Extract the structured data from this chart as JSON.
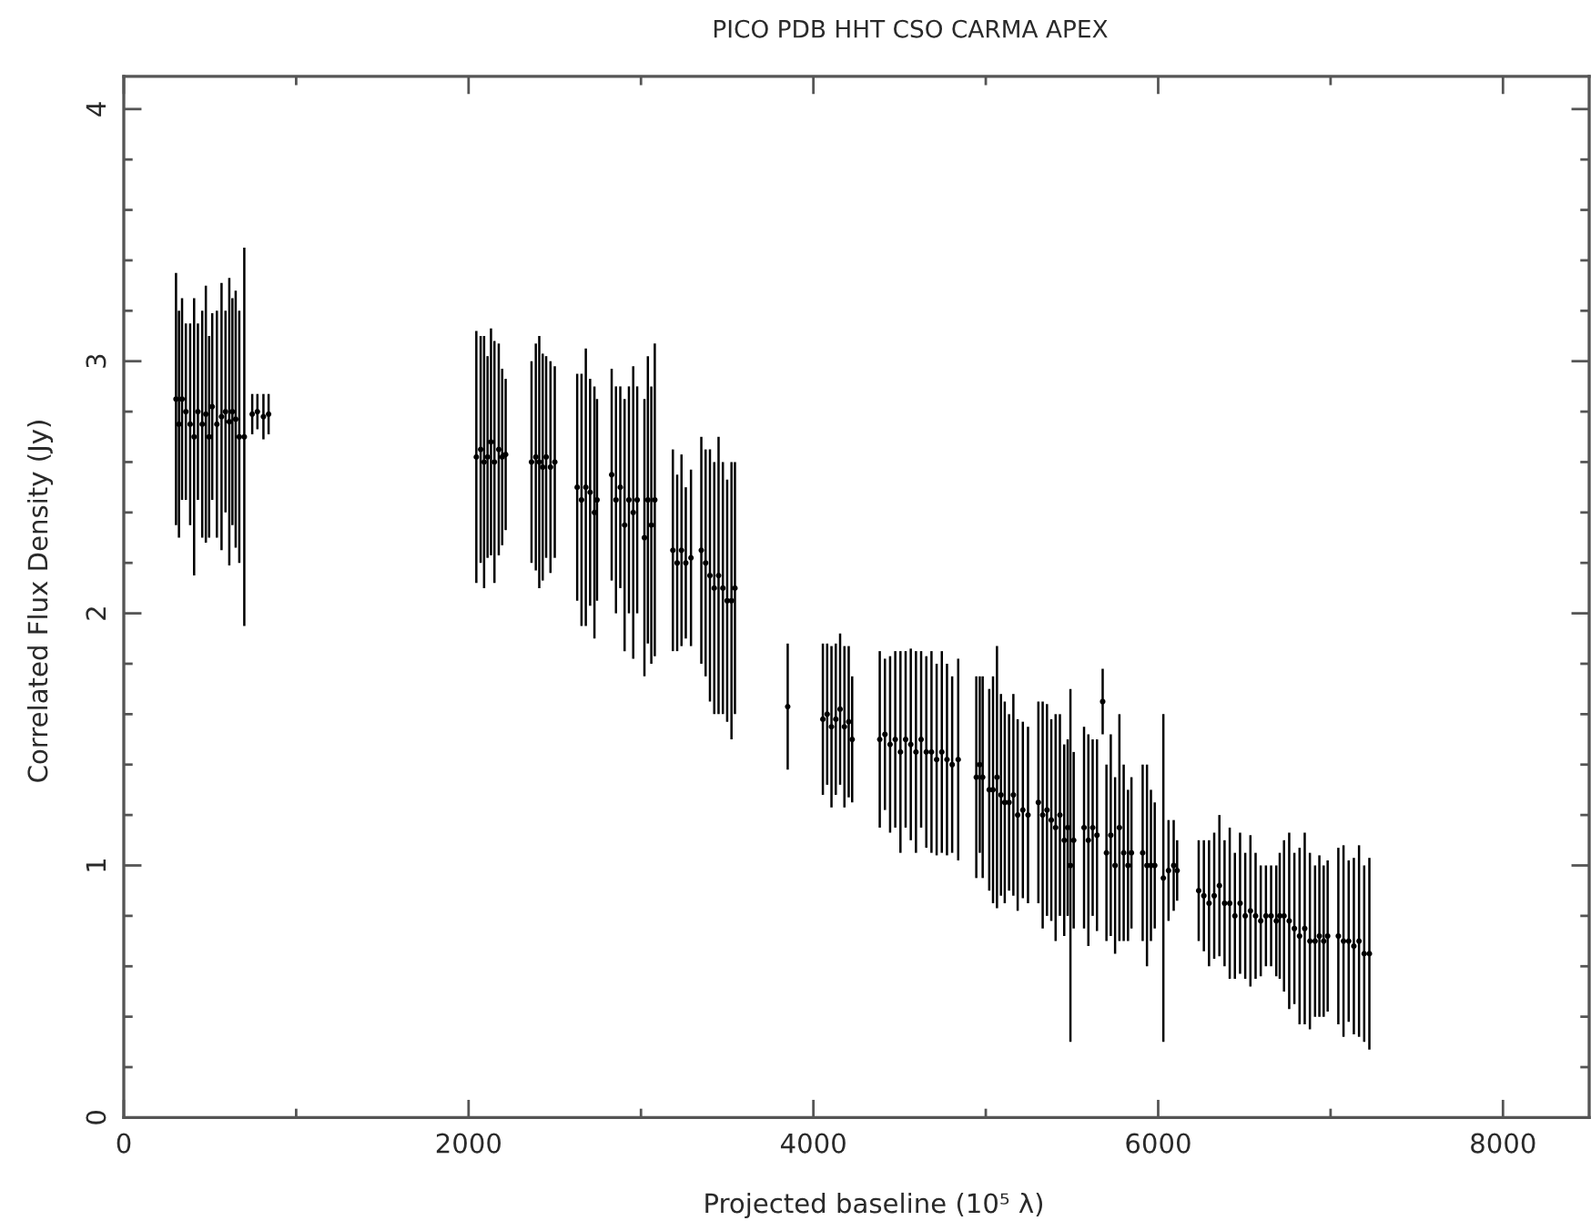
{
  "chart_data": {
    "type": "scatter",
    "title": "PICO PDB HHT CSO CARMA APEX",
    "xlabel": "Projected baseline (10⁵ λ)",
    "ylabel": "Correlated Flux Density (Jy)",
    "xlim": [
      0,
      8500
    ],
    "ylim": [
      0,
      4.13
    ],
    "xticks": [
      0,
      {
        "value": 1000,
        "label": null
      },
      2000,
      {
        "value": 3000,
        "label": null
      },
      4000,
      {
        "value": 5000,
        "label": null
      },
      6000,
      {
        "value": 7000,
        "label": null
      },
      8000
    ],
    "yticks": [
      0,
      {
        "value": 0.2,
        "label": null
      },
      {
        "value": 0.4,
        "label": null
      },
      {
        "value": 0.6,
        "label": null
      },
      {
        "value": 0.8,
        "label": null
      },
      1,
      {
        "value": 1.2,
        "label": null
      },
      {
        "value": 1.4,
        "label": null
      },
      {
        "value": 1.6,
        "label": null
      },
      {
        "value": 1.8,
        "label": null
      },
      2,
      {
        "value": 2.2,
        "label": null
      },
      {
        "value": 2.4,
        "label": null
      },
      {
        "value": 2.6,
        "label": null
      },
      {
        "value": 2.8,
        "label": null
      },
      3,
      {
        "value": 3.2,
        "label": null
      },
      {
        "value": 3.4,
        "label": null
      },
      {
        "value": 3.6,
        "label": null
      },
      {
        "value": 3.8,
        "label": null
      },
      4
    ],
    "marker": "circle",
    "series": [
      {
        "color": "#000000",
        "x": [
          303,
          320,
          338,
          360,
          385,
          408,
          430,
          455,
          476,
          495,
          513,
          540,
          567,
          590,
          612,
          630,
          649,
          670,
          699,
          745,
          775,
          810,
          840,
          2045,
          2070,
          2090,
          2110,
          2130,
          2150,
          2175,
          2195,
          2215,
          2365,
          2390,
          2410,
          2430,
          2450,
          2475,
          2500,
          2630,
          2655,
          2680,
          2705,
          2730,
          2745,
          2830,
          2855,
          2880,
          2905,
          2930,
          2955,
          2978,
          3020,
          3040,
          3060,
          3080,
          3185,
          3210,
          3235,
          3260,
          3290,
          3350,
          3375,
          3400,
          3425,
          3450,
          3475,
          3500,
          3525,
          3545,
          3851,
          4055,
          4080,
          4105,
          4130,
          4155,
          4180,
          4205,
          4225,
          4385,
          4415,
          4445,
          4475,
          4505,
          4535,
          4565,
          4595,
          4625,
          4655,
          4685,
          4715,
          4745,
          4775,
          4805,
          4840,
          4945,
          4965,
          4982,
          5020,
          5042,
          5065,
          5088,
          5110,
          5135,
          5160,
          5185,
          5215,
          5245,
          5305,
          5330,
          5355,
          5380,
          5405,
          5430,
          5455,
          5475,
          5491,
          5510,
          5570,
          5595,
          5620,
          5645,
          5678,
          5700,
          5725,
          5750,
          5775,
          5800,
          5825,
          5845,
          5910,
          5935,
          5958,
          5980,
          6030,
          6060,
          6090,
          6110,
          6235,
          6265,
          6295,
          6325,
          6355,
          6385,
          6415,
          6445,
          6475,
          6505,
          6535,
          6565,
          6595,
          6625,
          6655,
          6685,
          6705,
          6730,
          6760,
          6790,
          6820,
          6850,
          6880,
          6910,
          6935,
          6960,
          6983,
          7045,
          7075,
          7105,
          7135,
          7165,
          7195,
          7225
        ],
        "values": [
          2.85,
          2.75,
          2.85,
          2.8,
          2.75,
          2.7,
          2.8,
          2.75,
          2.79,
          2.7,
          2.82,
          2.75,
          2.78,
          2.8,
          2.76,
          2.8,
          2.77,
          2.7,
          2.7,
          2.79,
          2.8,
          2.78,
          2.79,
          2.62,
          2.65,
          2.6,
          2.62,
          2.68,
          2.6,
          2.65,
          2.62,
          2.63,
          2.6,
          2.62,
          2.6,
          2.58,
          2.62,
          2.58,
          2.6,
          2.5,
          2.45,
          2.5,
          2.48,
          2.4,
          2.45,
          2.55,
          2.45,
          2.5,
          2.35,
          2.45,
          2.4,
          2.45,
          2.3,
          2.45,
          2.35,
          2.45,
          2.25,
          2.2,
          2.25,
          2.2,
          2.22,
          2.25,
          2.2,
          2.15,
          2.1,
          2.15,
          2.1,
          2.05,
          2.05,
          2.1,
          1.63,
          1.58,
          1.6,
          1.55,
          1.58,
          1.62,
          1.55,
          1.57,
          1.5,
          1.5,
          1.52,
          1.48,
          1.5,
          1.45,
          1.5,
          1.48,
          1.45,
          1.5,
          1.45,
          1.45,
          1.42,
          1.45,
          1.42,
          1.4,
          1.42,
          1.35,
          1.4,
          1.35,
          1.3,
          1.3,
          1.35,
          1.28,
          1.25,
          1.25,
          1.28,
          1.2,
          1.22,
          1.2,
          1.25,
          1.2,
          1.22,
          1.18,
          1.15,
          1.2,
          1.1,
          1.15,
          1.0,
          1.1,
          1.15,
          1.1,
          1.15,
          1.12,
          1.65,
          1.05,
          1.12,
          1.0,
          1.15,
          1.05,
          1.0,
          1.05,
          1.05,
          1.0,
          1.0,
          1.0,
          0.95,
          0.98,
          1.0,
          0.98,
          0.9,
          0.88,
          0.85,
          0.88,
          0.92,
          0.85,
          0.85,
          0.8,
          0.85,
          0.8,
          0.82,
          0.8,
          0.78,
          0.8,
          0.8,
          0.78,
          0.8,
          0.8,
          0.78,
          0.75,
          0.72,
          0.75,
          0.7,
          0.7,
          0.72,
          0.7,
          0.72,
          0.72,
          0.7,
          0.7,
          0.68,
          0.7,
          0.65,
          0.65
        ],
        "errors": [
          0.5,
          0.45,
          0.4,
          0.35,
          0.4,
          0.55,
          0.35,
          0.45,
          0.51,
          0.4,
          0.37,
          0.45,
          0.53,
          0.4,
          0.57,
          0.45,
          0.51,
          0.5,
          0.75,
          0.08,
          0.07,
          0.09,
          0.08,
          0.5,
          0.45,
          0.5,
          0.4,
          0.45,
          0.48,
          0.42,
          0.35,
          0.3,
          0.4,
          0.45,
          0.5,
          0.45,
          0.4,
          0.42,
          0.38,
          0.45,
          0.5,
          0.55,
          0.45,
          0.5,
          0.4,
          0.42,
          0.45,
          0.4,
          0.5,
          0.45,
          0.58,
          0.45,
          0.55,
          0.57,
          0.55,
          0.62,
          0.4,
          0.35,
          0.38,
          0.3,
          0.35,
          0.45,
          0.45,
          0.5,
          0.5,
          0.55,
          0.5,
          0.48,
          0.55,
          0.5,
          0.25,
          0.3,
          0.28,
          0.32,
          0.3,
          0.3,
          0.32,
          0.3,
          0.25,
          0.35,
          0.3,
          0.35,
          0.35,
          0.4,
          0.35,
          0.38,
          0.4,
          0.35,
          0.38,
          0.4,
          0.38,
          0.4,
          0.38,
          0.35,
          0.4,
          0.4,
          0.35,
          0.4,
          0.4,
          0.45,
          0.52,
          0.4,
          0.4,
          0.35,
          0.4,
          0.38,
          0.35,
          0.35,
          0.4,
          0.45,
          0.42,
          0.4,
          0.45,
          0.4,
          0.38,
          0.35,
          0.7,
          0.35,
          0.4,
          0.42,
          0.35,
          0.38,
          0.13,
          0.35,
          0.4,
          0.35,
          0.45,
          0.35,
          0.3,
          0.3,
          0.35,
          0.4,
          0.3,
          0.25,
          0.65,
          0.2,
          0.18,
          0.12,
          0.2,
          0.22,
          0.25,
          0.25,
          0.28,
          0.25,
          0.3,
          0.25,
          0.28,
          0.25,
          0.3,
          0.25,
          0.22,
          0.2,
          0.2,
          0.22,
          0.25,
          0.3,
          0.35,
          0.3,
          0.35,
          0.38,
          0.35,
          0.3,
          0.32,
          0.3,
          0.3,
          0.35,
          0.38,
          0.32,
          0.35,
          0.38,
          0.35,
          0.38
        ]
      }
    ]
  }
}
